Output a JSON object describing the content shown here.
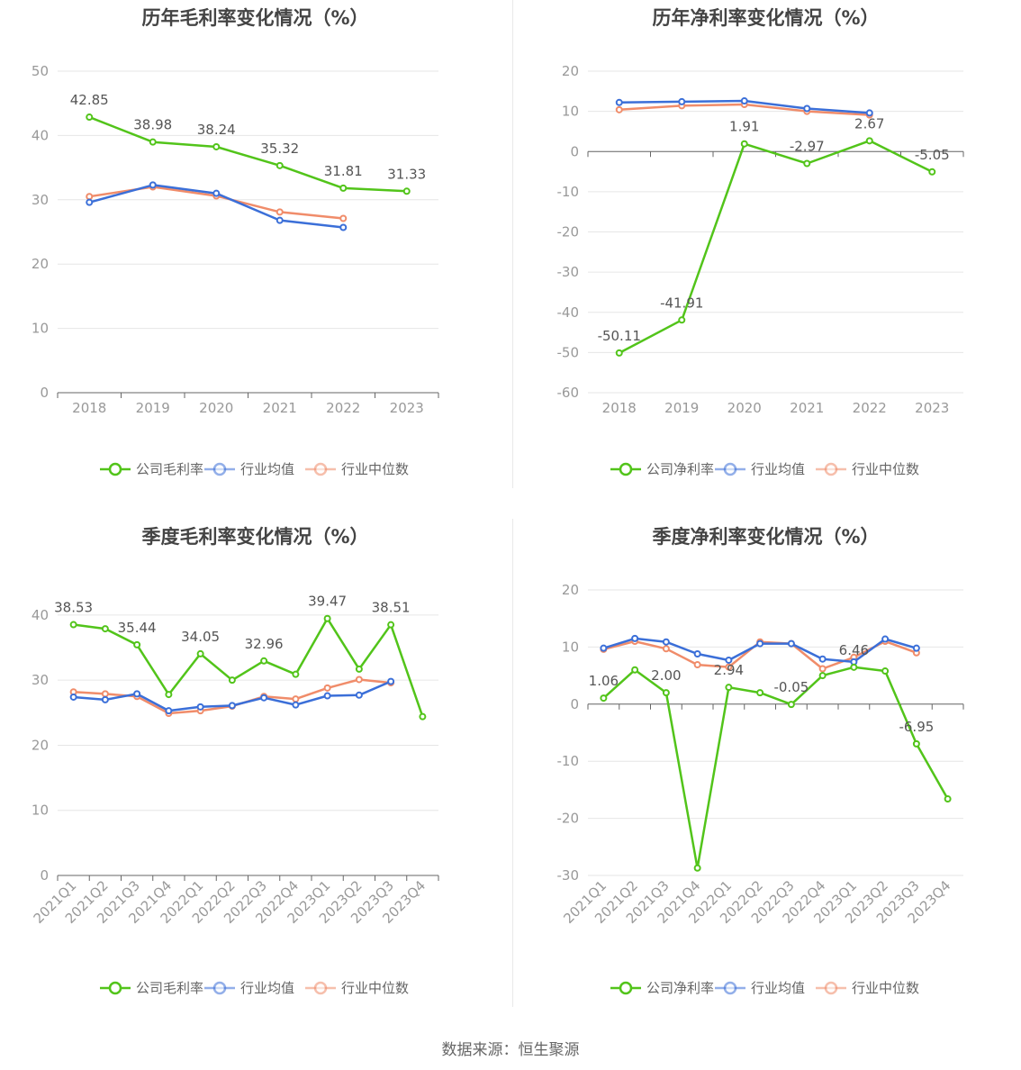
{
  "charts": [
    {
      "id": "annual-gross",
      "title": "历年毛利率变化情况（%）",
      "categories": [
        "2018",
        "2019",
        "2020",
        "2021",
        "2022",
        "2023"
      ],
      "yticks": [
        0,
        10,
        20,
        30,
        40,
        50
      ],
      "ylim": [
        0,
        50
      ],
      "series_order": [
        "公司毛利率",
        "行业均值",
        "行业中位数"
      ],
      "series": [
        {
          "name": "公司毛利率",
          "color": "#52c41a",
          "values": [
            42.85,
            38.98,
            38.24,
            35.32,
            31.81,
            31.33
          ],
          "labels": [
            "42.85",
            "38.98",
            "38.24",
            "35.32",
            "31.81",
            "31.33"
          ]
        },
        {
          "name": "行业均值",
          "color": "#3b6fd8",
          "values": [
            29.6,
            32.3,
            31.0,
            26.8,
            25.7,
            null
          ]
        },
        {
          "name": "行业中位数",
          "color": "#f08c6a",
          "values": [
            30.5,
            32.0,
            30.6,
            28.1,
            27.1,
            null
          ]
        }
      ]
    },
    {
      "id": "annual-net",
      "title": "历年净利率变化情况（%）",
      "categories": [
        "2018",
        "2019",
        "2020",
        "2021",
        "2022",
        "2023"
      ],
      "yticks": [
        -60,
        -50,
        -40,
        -30,
        -20,
        -10,
        0,
        10,
        20
      ],
      "ylim": [
        -60,
        20
      ],
      "series": [
        {
          "name": "公司净利率",
          "color": "#52c41a",
          "values": [
            -50.11,
            -41.91,
            1.91,
            -2.97,
            2.67,
            -5.05
          ],
          "labels": [
            "-50.11",
            "-41.91",
            "1.91",
            "-2.97",
            "2.67",
            "-5.05"
          ]
        },
        {
          "name": "行业均值",
          "color": "#3b6fd8",
          "values": [
            12.2,
            12.4,
            12.6,
            10.7,
            9.6,
            null
          ]
        },
        {
          "name": "行业中位数",
          "color": "#f08c6a",
          "values": [
            10.4,
            11.4,
            11.7,
            10.0,
            9.1,
            null
          ]
        }
      ]
    },
    {
      "id": "quarter-gross",
      "title": "季度毛利率变化情况（%）",
      "categories": [
        "2021Q1",
        "2021Q2",
        "2021Q3",
        "2021Q4",
        "2022Q1",
        "2022Q2",
        "2022Q3",
        "2022Q4",
        "2023Q1",
        "2023Q2",
        "2023Q3",
        "2023Q4"
      ],
      "yticks": [
        0,
        10,
        20,
        30,
        40
      ],
      "ylim": [
        0,
        44
      ],
      "series": [
        {
          "name": "公司毛利率",
          "color": "#52c41a",
          "values": [
            38.53,
            37.9,
            35.44,
            27.8,
            34.05,
            30.0,
            32.96,
            30.9,
            39.47,
            31.7,
            38.51,
            24.4
          ],
          "labels": [
            "38.53",
            "",
            "35.44",
            "",
            "34.05",
            "",
            "32.96",
            "",
            "39.47",
            "",
            "38.51",
            ""
          ]
        },
        {
          "name": "行业均值",
          "color": "#3b6fd8",
          "values": [
            27.4,
            27.0,
            27.9,
            25.3,
            25.9,
            26.1,
            27.3,
            26.2,
            27.6,
            27.7,
            29.8,
            null
          ]
        },
        {
          "name": "行业中位数",
          "color": "#f08c6a",
          "values": [
            28.2,
            27.9,
            27.5,
            24.9,
            25.3,
            26.0,
            27.5,
            27.1,
            28.8,
            30.1,
            29.6,
            null
          ]
        }
      ]
    },
    {
      "id": "quarter-net",
      "title": "季度净利率变化情况（%）",
      "categories": [
        "2021Q1",
        "2021Q2",
        "2021Q3",
        "2021Q4",
        "2022Q1",
        "2022Q2",
        "2022Q3",
        "2022Q4",
        "2023Q1",
        "2023Q2",
        "2023Q3",
        "2023Q4"
      ],
      "yticks": [
        -30,
        -20,
        -10,
        0,
        10,
        20
      ],
      "ylim": [
        -30,
        20
      ],
      "series": [
        {
          "name": "公司净利率",
          "color": "#52c41a",
          "values": [
            1.06,
            6.0,
            2.0,
            -28.7,
            2.94,
            2.0,
            -0.05,
            5.0,
            6.46,
            5.8,
            -6.95,
            -16.6
          ],
          "labels": [
            "1.06",
            "",
            "2.00",
            "",
            "2.94",
            "",
            "-0.05",
            "",
            "6.46",
            "",
            "-6.95",
            ""
          ]
        },
        {
          "name": "行业均值",
          "color": "#3b6fd8",
          "values": [
            9.8,
            11.5,
            10.9,
            8.8,
            7.7,
            10.6,
            10.6,
            7.9,
            7.4,
            11.4,
            9.8,
            null
          ]
        },
        {
          "name": "行业中位数",
          "color": "#f08c6a",
          "values": [
            9.6,
            11.0,
            9.7,
            6.9,
            6.5,
            10.9,
            10.6,
            6.2,
            8.2,
            11.0,
            9.0,
            null
          ]
        }
      ]
    }
  ],
  "source": "数据来源：恒生聚源"
}
